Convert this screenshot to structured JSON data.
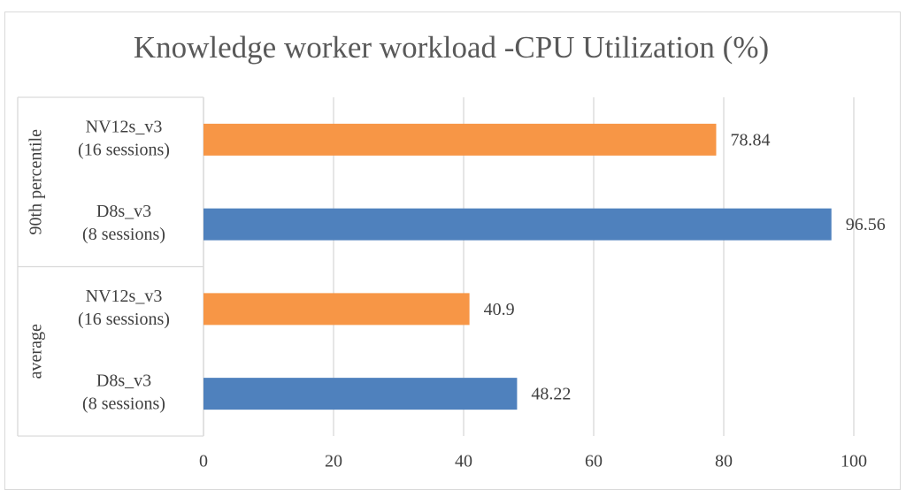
{
  "chart_data": {
    "type": "bar",
    "orientation": "horizontal",
    "title": "Knowledge worker workload -CPU Utilization (%)",
    "groups": [
      {
        "name": "90th percentile",
        "categories": [
          [
            "NV12s_v3",
            "(16 sessions)"
          ],
          [
            "D8s_v3",
            "(8 sessions)"
          ]
        ],
        "values": [
          78.84,
          96.56
        ]
      },
      {
        "name": "average",
        "categories": [
          [
            "NV12s_v3",
            "(16 sessions)"
          ],
          [
            "D8s_v3",
            "(8 sessions)"
          ]
        ],
        "values": [
          40.9,
          48.22
        ]
      }
    ],
    "bar_colors": [
      "#f79646",
      "#4f81bd"
    ],
    "xlim": [
      0,
      100
    ],
    "xticks": [
      0,
      20,
      40,
      60,
      80,
      100
    ],
    "grid": true
  }
}
